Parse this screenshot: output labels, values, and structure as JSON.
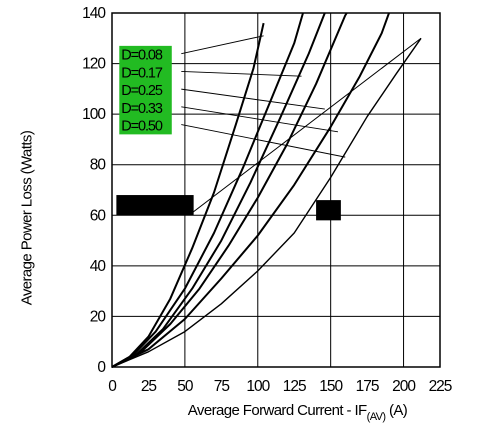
{
  "chart_data": {
    "type": "line",
    "title": "",
    "xlabel": {
      "main": "Average Forward Current - IF",
      "sub": "(AV)",
      "unit": "(A)"
    },
    "ylabel": "Average Power Loss (Watts)",
    "xlim": [
      0,
      225
    ],
    "ylim": [
      0,
      140
    ],
    "xticks": [
      "0",
      "25",
      "50",
      "75",
      "100",
      "125",
      "150",
      "175",
      "200",
      "225"
    ],
    "yticks": [
      "0",
      "20",
      "40",
      "60",
      "80",
      "100",
      "120",
      "140"
    ],
    "grid": true,
    "legend_color": "#22bb22",
    "series": [
      {
        "name": "D=0.08",
        "points": [
          [
            0,
            0
          ],
          [
            12,
            4
          ],
          [
            25,
            12
          ],
          [
            40,
            27
          ],
          [
            55,
            47
          ],
          [
            70,
            69
          ],
          [
            85,
            96
          ],
          [
            97,
            118
          ],
          [
            104,
            136
          ]
        ]
      },
      {
        "name": "D=0.17",
        "points": [
          [
            0,
            0
          ],
          [
            15,
            5
          ],
          [
            30,
            14
          ],
          [
            50,
            31
          ],
          [
            70,
            53
          ],
          [
            90,
            79
          ],
          [
            110,
            107
          ],
          [
            125,
            128
          ],
          [
            131,
            140
          ]
        ]
      },
      {
        "name": "D=0.25",
        "points": [
          [
            0,
            0
          ],
          [
            15,
            4
          ],
          [
            35,
            15
          ],
          [
            55,
            31
          ],
          [
            75,
            50
          ],
          [
            95,
            73
          ],
          [
            115,
            98
          ],
          [
            135,
            124
          ],
          [
            146,
            140
          ]
        ]
      },
      {
        "name": "D=0.33",
        "points": [
          [
            0,
            0
          ],
          [
            20,
            6
          ],
          [
            40,
            17
          ],
          [
            60,
            31
          ],
          [
            80,
            48
          ],
          [
            100,
            67
          ],
          [
            120,
            88
          ],
          [
            140,
            112
          ],
          [
            160,
            139
          ],
          [
            161,
            140
          ]
        ]
      },
      {
        "name": "D=0.50",
        "points": [
          [
            0,
            0
          ],
          [
            25,
            7
          ],
          [
            50,
            19
          ],
          [
            75,
            35
          ],
          [
            100,
            52
          ],
          [
            125,
            72
          ],
          [
            150,
            95
          ],
          [
            170,
            115
          ],
          [
            185,
            132
          ],
          [
            190,
            140
          ]
        ]
      },
      {
        "name": "",
        "points": [
          [
            0,
            0
          ],
          [
            25,
            6
          ],
          [
            50,
            14
          ],
          [
            75,
            25
          ],
          [
            100,
            38
          ],
          [
            125,
            53
          ],
          [
            150,
            75
          ],
          [
            175,
            99
          ],
          [
            195,
            116
          ],
          [
            212,
            130
          ]
        ]
      }
    ],
    "leader_lines": [
      {
        "from": "D=0.08",
        "to_x": 104,
        "to_y": 131
      },
      {
        "from": "D=0.17",
        "to_x": 130,
        "to_y": 115
      },
      {
        "from": "D=0.25",
        "to_x": 146,
        "to_y": 102
      },
      {
        "from": "D=0.33",
        "to_x": 155,
        "to_y": 93
      },
      {
        "from": "D=0.50",
        "to_x": 160,
        "to_y": 83
      }
    ],
    "annotation_line": {
      "from_x": 55,
      "from_y": 61,
      "to_x": 212,
      "to_y": 130
    }
  }
}
